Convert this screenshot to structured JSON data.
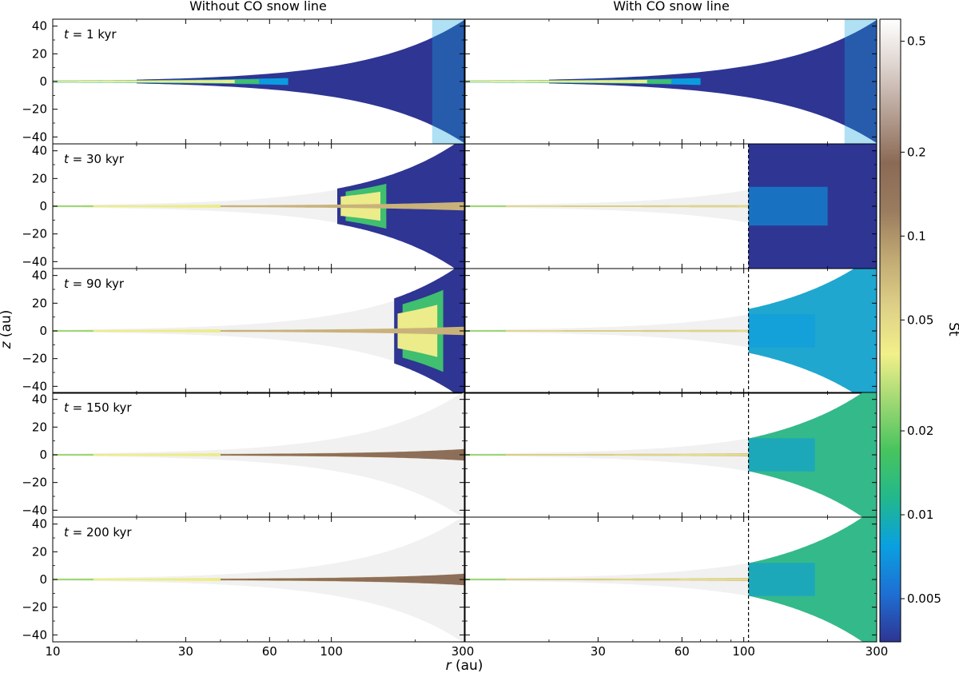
{
  "chart_data": {
    "type": "heatmap",
    "description_type": "multi-panel scatter density",
    "columns": [
      {
        "title": "Without CO snow line",
        "snow_line": false
      },
      {
        "title": "With CO snow line",
        "snow_line": true,
        "snow_line_r_au": 104
      }
    ],
    "rows": [
      {
        "label": "t = 1 kyr",
        "t_var": "t",
        "t_rest": " = 1 kyr",
        "t_kyr": 1
      },
      {
        "label": "t = 30 kyr",
        "t_var": "t",
        "t_rest": " = 30 kyr",
        "t_kyr": 30
      },
      {
        "label": "t = 90 kyr",
        "t_var": "t",
        "t_rest": " = 90 kyr",
        "t_kyr": 90
      },
      {
        "label": "t = 150 kyr",
        "t_var": "t",
        "t_rest": " = 150 kyr",
        "t_kyr": 150
      },
      {
        "label": "t = 200 kyr",
        "t_var": "t",
        "t_rest": " = 200 kyr",
        "t_kyr": 200
      }
    ],
    "xaxis": {
      "label_var": "r",
      "label_unit": " (au)",
      "scale": "log",
      "range": [
        10,
        300
      ],
      "ticks": [
        10,
        30,
        60,
        100,
        300
      ],
      "tick_labels": [
        "10",
        "30",
        "60",
        "100",
        "300"
      ]
    },
    "yaxis": {
      "label_var": "z",
      "label_unit": " (au)",
      "scale": "linear",
      "range": [
        -45,
        45
      ],
      "ticks": [
        -40,
        -20,
        0,
        20,
        40
      ],
      "tick_labels": [
        "−40",
        "−20",
        "0",
        "20",
        "40"
      ]
    },
    "colorbar": {
      "label": "St",
      "scale": "log",
      "range": [
        0.0035,
        0.6
      ],
      "ticks": [
        0.005,
        0.01,
        0.02,
        0.05,
        0.1,
        0.2,
        0.5
      ],
      "tick_labels": [
        "0.005",
        "0.01",
        "0.02",
        "0.05",
        "0.1",
        "0.2",
        "0.5"
      ],
      "colors": [
        "#2e3593",
        "#1e6fd4",
        "#0aa0e0",
        "#22b88c",
        "#48c45e",
        "#9ed873",
        "#f2f08a",
        "#ded087",
        "#c1aa73",
        "#9a7c5f",
        "#8b6a55",
        "#b49e92",
        "#ddd2cd",
        "#ffffff"
      ]
    },
    "grid": false,
    "background_envelope_color": "#f1f1f1"
  }
}
